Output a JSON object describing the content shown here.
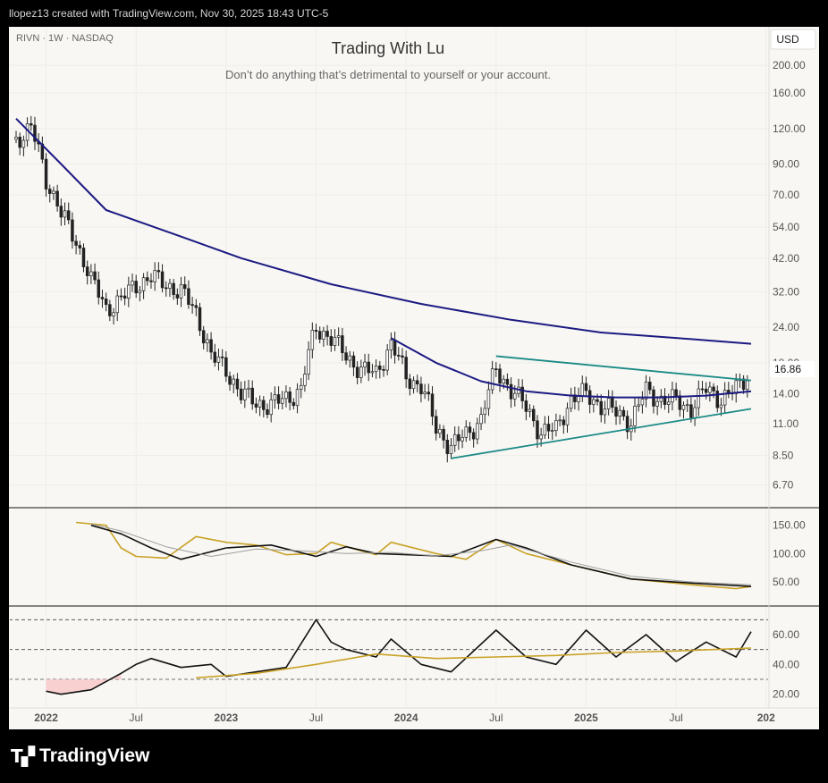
{
  "header": {
    "text": "llopez13 created with TradingView.com, Nov 30, 2025 18:43 UTC-5"
  },
  "brand": {
    "name": "TradingView"
  },
  "colors": {
    "bg": "#f8f7f3",
    "grid": "#efeee9",
    "ma_long": "#1c1a82",
    "ma_mid": "#1c1a82",
    "trend": "#1a8a86",
    "gold": "#c9a227",
    "black": "#111111",
    "gray": "#9e9e9e",
    "rsi_fill": "#f7c6c6"
  },
  "chart_data": [
    {
      "type": "candlestick",
      "symbol_line": "RIVN · 1W · NASDAQ",
      "title": "Trading With Lu",
      "subtitle": "Don’t do anything that’s detrimental to yourself or your account.",
      "currency_button": "USD",
      "last_price": "16.86",
      "y_scale": "log",
      "ylim": [
        5.9,
        240
      ],
      "y_ticks": [
        "200.00",
        "160.00",
        "120.00",
        "90.00",
        "70.00",
        "54.00",
        "42.00",
        "32.00",
        "24.00",
        "18.00",
        "14.00",
        "11.00",
        "8.50",
        "6.70"
      ],
      "x_ticks": [
        "2022",
        "Jul",
        "2023",
        "Jul",
        "2024",
        "Jul",
        "2025",
        "Jul",
        "202"
      ],
      "x_range": [
        "2021-11",
        "2025-12"
      ],
      "price_anchors": [
        [
          "2021-11",
          110
        ],
        [
          "2021-12",
          120
        ],
        [
          "2022-01",
          80
        ],
        [
          "2022-02",
          60
        ],
        [
          "2022-03",
          48
        ],
        [
          "2022-04",
          35
        ],
        [
          "2022-05",
          28
        ],
        [
          "2022-06",
          30
        ],
        [
          "2022-07",
          34
        ],
        [
          "2022-08",
          36
        ],
        [
          "2022-09",
          34
        ],
        [
          "2022-10",
          32
        ],
        [
          "2022-11",
          27
        ],
        [
          "2022-12",
          19
        ],
        [
          "2023-01",
          17
        ],
        [
          "2023-02",
          14
        ],
        [
          "2023-03",
          13
        ],
        [
          "2023-04",
          12.8
        ],
        [
          "2023-05",
          13.5
        ],
        [
          "2023-06",
          14.5
        ],
        [
          "2023-07",
          24
        ],
        [
          "2023-08",
          22
        ],
        [
          "2023-09",
          19
        ],
        [
          "2023-10",
          17
        ],
        [
          "2023-11",
          16.5
        ],
        [
          "2023-12",
          21
        ],
        [
          "2024-01",
          16
        ],
        [
          "2024-02",
          15
        ],
        [
          "2024-03",
          10.5
        ],
        [
          "2024-04",
          9.2
        ],
        [
          "2024-05",
          10
        ],
        [
          "2024-06",
          11.5
        ],
        [
          "2024-07",
          17
        ],
        [
          "2024-08",
          14.5
        ],
        [
          "2024-09",
          12.5
        ],
        [
          "2024-10",
          10.2
        ],
        [
          "2024-11",
          10.5
        ],
        [
          "2024-12",
          13.5
        ],
        [
          "2025-01",
          14
        ],
        [
          "2025-02",
          12.8
        ],
        [
          "2025-03",
          12
        ],
        [
          "2025-04",
          11.2
        ],
        [
          "2025-05",
          14.3
        ],
        [
          "2025-06",
          13.4
        ],
        [
          "2025-07",
          13.2
        ],
        [
          "2025-08",
          12.5
        ],
        [
          "2025-09",
          14.5
        ],
        [
          "2025-10",
          13.5
        ],
        [
          "2025-11",
          14.5
        ],
        [
          "2025-12",
          16.86
        ]
      ],
      "ma_long": [
        [
          "2021-11",
          130
        ],
        [
          "2022-02",
          90
        ],
        [
          "2022-05",
          62
        ],
        [
          "2022-10",
          50
        ],
        [
          "2023-02",
          42
        ],
        [
          "2023-08",
          34
        ],
        [
          "2024-02",
          29
        ],
        [
          "2024-08",
          25.5
        ],
        [
          "2025-02",
          23
        ],
        [
          "2025-08",
          21.8
        ],
        [
          "2025-12",
          21
        ]
      ],
      "ma_mid": [
        [
          "2023-12",
          22
        ],
        [
          "2024-03",
          18
        ],
        [
          "2024-06",
          15.5
        ],
        [
          "2024-09",
          14.3
        ],
        [
          "2024-12",
          13.8
        ],
        [
          "2025-03",
          13.6
        ],
        [
          "2025-06",
          13.6
        ],
        [
          "2025-09",
          13.8
        ],
        [
          "2025-12",
          14.3
        ]
      ],
      "trendlines": [
        {
          "from": [
            "2024-04",
            8.3
          ],
          "to": [
            "2025-12",
            12.4
          ]
        },
        {
          "from": [
            "2024-07",
            19
          ],
          "to": [
            "2025-12",
            15.6
          ]
        }
      ]
    },
    {
      "type": "line",
      "y_ticks": [
        "150.00",
        "100.00",
        "50.00"
      ],
      "ylim": [
        20,
        170
      ],
      "series": [
        {
          "color": "gold",
          "values": [
            [
              "2022-03",
              155
            ],
            [
              "2022-05",
              150
            ],
            [
              "2022-06",
              110
            ],
            [
              "2022-07",
              95
            ],
            [
              "2022-09",
              92
            ],
            [
              "2022-11",
              130
            ],
            [
              "2023-01",
              120
            ],
            [
              "2023-03",
              115
            ],
            [
              "2023-05",
              98
            ],
            [
              "2023-07",
              100
            ],
            [
              "2023-08",
              120
            ],
            [
              "2023-10",
              105
            ],
            [
              "2023-11",
              98
            ],
            [
              "2023-12",
              120
            ],
            [
              "2024-03",
              100
            ],
            [
              "2024-05",
              90
            ],
            [
              "2024-07",
              125
            ],
            [
              "2024-09",
              100
            ],
            [
              "2024-12",
              80
            ],
            [
              "2025-04",
              55
            ],
            [
              "2025-08",
              45
            ],
            [
              "2025-11",
              38
            ],
            [
              "2025-12",
              42
            ]
          ]
        },
        {
          "color": "black",
          "values": [
            [
              "2022-04",
              150
            ],
            [
              "2022-06",
              135
            ],
            [
              "2022-08",
              110
            ],
            [
              "2022-10",
              90
            ],
            [
              "2023-01",
              110
            ],
            [
              "2023-04",
              115
            ],
            [
              "2023-07",
              95
            ],
            [
              "2023-09",
              112
            ],
            [
              "2023-11",
              100
            ],
            [
              "2024-01",
              98
            ],
            [
              "2024-04",
              95
            ],
            [
              "2024-07",
              125
            ],
            [
              "2024-09",
              110
            ],
            [
              "2024-12",
              80
            ],
            [
              "2025-04",
              55
            ],
            [
              "2025-08",
              48
            ],
            [
              "2025-12",
              42
            ]
          ]
        },
        {
          "color": "gray",
          "values": [
            [
              "2022-04",
              152
            ],
            [
              "2022-06",
              140
            ],
            [
              "2022-09",
              112
            ],
            [
              "2022-12",
              95
            ],
            [
              "2023-03",
              108
            ],
            [
              "2023-06",
              105
            ],
            [
              "2023-09",
              100
            ],
            [
              "2023-12",
              102
            ],
            [
              "2024-03",
              96
            ],
            [
              "2024-06",
              105
            ],
            [
              "2024-08",
              115
            ],
            [
              "2024-12",
              85
            ],
            [
              "2025-04",
              60
            ],
            [
              "2025-08",
              50
            ],
            [
              "2025-12",
              45
            ]
          ]
        }
      ]
    },
    {
      "type": "line",
      "y_ticks": [
        "60.00",
        "40.00",
        "20.00"
      ],
      "ylim": [
        15,
        75
      ],
      "levels": [
        70,
        50,
        30
      ],
      "series": [
        {
          "color": "black",
          "values": [
            [
              "2022-01",
              22
            ],
            [
              "2022-02",
              20
            ],
            [
              "2022-04",
              23
            ],
            [
              "2022-06",
              34
            ],
            [
              "2022-07",
              40
            ],
            [
              "2022-08",
              44
            ],
            [
              "2022-10",
              38
            ],
            [
              "2022-12",
              40
            ],
            [
              "2023-01",
              32
            ],
            [
              "2023-03",
              35
            ],
            [
              "2023-05",
              38
            ],
            [
              "2023-07",
              70
            ],
            [
              "2023-08",
              55
            ],
            [
              "2023-09",
              50
            ],
            [
              "2023-11",
              45
            ],
            [
              "2023-12",
              57
            ],
            [
              "2024-02",
              40
            ],
            [
              "2024-04",
              35
            ],
            [
              "2024-07",
              63
            ],
            [
              "2024-09",
              45
            ],
            [
              "2024-11",
              40
            ],
            [
              "2025-01",
              63
            ],
            [
              "2025-03",
              45
            ],
            [
              "2025-05",
              60
            ],
            [
              "2025-07",
              42
            ],
            [
              "2025-09",
              55
            ],
            [
              "2025-11",
              45
            ],
            [
              "2025-12",
              62
            ]
          ]
        },
        {
          "color": "gold",
          "values": [
            [
              "2022-11",
              31
            ],
            [
              "2023-03",
              34
            ],
            [
              "2023-07",
              40
            ],
            [
              "2023-11",
              47
            ],
            [
              "2024-03",
              44
            ],
            [
              "2024-07",
              45
            ],
            [
              "2024-11",
              46
            ],
            [
              "2025-03",
              48
            ],
            [
              "2025-07",
              49
            ],
            [
              "2025-12",
              51
            ]
          ]
        }
      ]
    }
  ]
}
